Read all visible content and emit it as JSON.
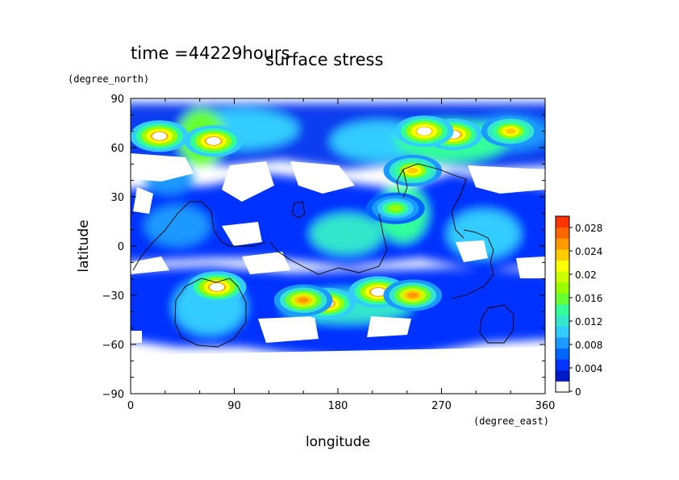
{
  "chart_data": {
    "type": "heatmap",
    "time_label": "time =44229hours",
    "title": "surface stress",
    "xlabel": "longitude",
    "ylabel": "latitude",
    "x_unit": "(degree_east)",
    "y_unit": "(degree_north)",
    "xlim": [
      0,
      360
    ],
    "ylim": [
      -90,
      90
    ],
    "x_ticks": [
      "0",
      "90",
      "180",
      "270",
      "360"
    ],
    "y_ticks": [
      "90",
      "60",
      "30",
      "0",
      "−30",
      "−60",
      "−90"
    ],
    "colorbar": {
      "range": [
        0,
        0.03
      ],
      "labels": [
        "0.028",
        "0.024",
        "0.02",
        "0.016",
        "0.012",
        "0.008",
        "0.004",
        "0"
      ],
      "colors": [
        "#ffffff",
        "#0019c8",
        "#0033ff",
        "#0066ff",
        "#1a99ff",
        "#33ccff",
        "#33e6cc",
        "#33ff99",
        "#66ff33",
        "#99ff00",
        "#ccff00",
        "#ffff00",
        "#ffcc00",
        "#ff9900",
        "#ff6600",
        "#ff3300"
      ]
    },
    "hotspots": [
      {
        "lon": 25,
        "lat": 67,
        "value": 0.03
      },
      {
        "lon": 72,
        "lat": 64,
        "value": 0.03
      },
      {
        "lon": 245,
        "lat": 46,
        "value": 0.024
      },
      {
        "lon": 230,
        "lat": 23,
        "value": 0.018
      },
      {
        "lon": 280,
        "lat": 68,
        "value": 0.03
      },
      {
        "lon": 255,
        "lat": 70,
        "value": 0.028
      },
      {
        "lon": 75,
        "lat": -25,
        "value": 0.03
      },
      {
        "lon": 170,
        "lat": -35,
        "value": 0.03
      },
      {
        "lon": 215,
        "lat": -28,
        "value": 0.03
      },
      {
        "lon": 245,
        "lat": -30,
        "value": 0.026
      },
      {
        "lon": 150,
        "lat": -33,
        "value": 0.026
      },
      {
        "lon": 330,
        "lat": 70,
        "value": 0.024
      }
    ]
  }
}
